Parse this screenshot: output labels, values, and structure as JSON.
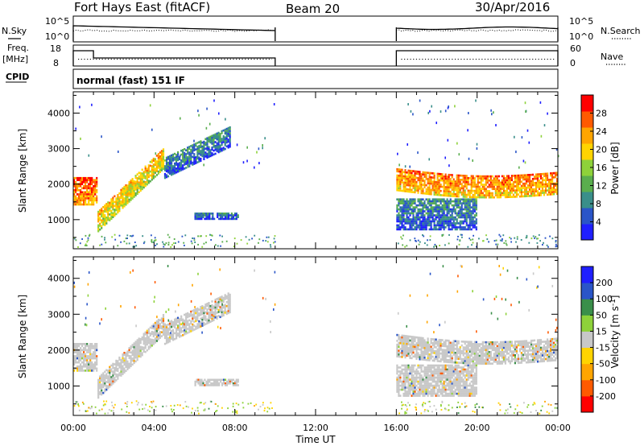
{
  "header": {
    "site": "Fort Hays East (fitACF)",
    "beam": "Beam 20",
    "date": "30/Apr/2016"
  },
  "params": {
    "nsky_label": "N.Sky",
    "nsky_ticks": [
      "10^5",
      "10^0"
    ],
    "nsearch_label": "N.Search",
    "nsearch_ticks": [
      "10^5",
      "10^0"
    ],
    "freq_label": "Freq.",
    "freq_unit": "[MHz]",
    "freq_ticks": [
      "18",
      "8"
    ],
    "nave_label": "Nave",
    "nave_ticks": [
      "60",
      "0"
    ],
    "cpid_label": "CPID",
    "cpid_value": "normal (fast) 151 IF"
  },
  "colors": {
    "power": [
      "#1f1fff",
      "#2a55c8",
      "#3a8f8a",
      "#5aae4e",
      "#8ed23a",
      "#ffd400",
      "#ffa500",
      "#ff5a00",
      "#ff0000"
    ],
    "velocity": [
      "#ff0000",
      "#ff5a00",
      "#ffa500",
      "#ffd400",
      "#c8c8c8",
      "#8ed23a",
      "#3a8f4a",
      "#2a55c8",
      "#1f1fff"
    ]
  },
  "chart_data": [
    {
      "type": "heatmap",
      "panel": "power",
      "xlabel": "Time UT",
      "ylabel": "Slant Range [km]",
      "x_ticks": [
        "00:00",
        "04:00",
        "08:00",
        "12:00",
        "16:00",
        "20:00",
        "00:00"
      ],
      "xlim_hours": [
        0,
        24
      ],
      "y_ticks": [
        "1000",
        "2000",
        "3000",
        "4000"
      ],
      "ylim": [
        180,
        4600
      ],
      "colorbar_label": "Power [dB]",
      "colorbar_ticks": [
        "4",
        "8",
        "12",
        "16",
        "20",
        "24",
        "28"
      ],
      "colorbar_range": [
        0,
        32
      ],
      "data_windows_hours": [
        [
          1.0,
          10.0
        ],
        [
          16.0,
          24.0
        ]
      ],
      "backscatter_bands": [
        {
          "start_hours": 0.0,
          "end_hours": 1.2,
          "range_km": [
            1400,
            2200
          ],
          "power_dB": 28
        },
        {
          "start_hours": 1.2,
          "end_hours": 4.5,
          "range_km": [
            900,
            3100
          ],
          "power_dB": 22
        },
        {
          "start_hours": 4.5,
          "end_hours": 7.8,
          "range_km": [
            2000,
            3800
          ],
          "power_dB": 10
        },
        {
          "start_hours": 6.0,
          "end_hours": 8.2,
          "range_km": [
            1000,
            1200
          ],
          "power_dB": 8
        },
        {
          "start_hours": 16.0,
          "end_hours": 24.0,
          "range_km": [
            1500,
            2500
          ],
          "power_dB": 26
        },
        {
          "start_hours": 16.0,
          "end_hours": 20.0,
          "range_km": [
            700,
            1600
          ],
          "power_dB": 10
        }
      ]
    },
    {
      "type": "heatmap",
      "panel": "velocity",
      "xlabel": "Time UT",
      "ylabel": "Slant Range [km]",
      "x_ticks": [
        "00:00",
        "04:00",
        "08:00",
        "12:00",
        "16:00",
        "20:00",
        "00:00"
      ],
      "xlim_hours": [
        0,
        24
      ],
      "y_ticks": [
        "1000",
        "2000",
        "3000",
        "4000"
      ],
      "ylim": [
        180,
        4600
      ],
      "colorbar_label": "Velocity [m s^-1]",
      "colorbar_ticks": [
        "200",
        "100",
        "50",
        "15",
        "-15",
        "-50",
        "-100",
        "-200"
      ],
      "colorbar_range": [
        -250,
        250
      ],
      "dominant_velocity_m_s": [
        -15,
        15
      ],
      "backscatter_bands": [
        {
          "start_hours": 0.0,
          "end_hours": 4.5,
          "range_km": [
            900,
            3100
          ],
          "velocity_m_s": 0
        },
        {
          "start_hours": 4.5,
          "end_hours": 7.8,
          "range_km": [
            2000,
            3800
          ],
          "velocity_m_s": 0
        },
        {
          "start_hours": 16.0,
          "end_hours": 24.0,
          "range_km": [
            1500,
            2500
          ],
          "velocity_m_s": 0
        }
      ]
    }
  ],
  "x_axis_title": "Time UT"
}
